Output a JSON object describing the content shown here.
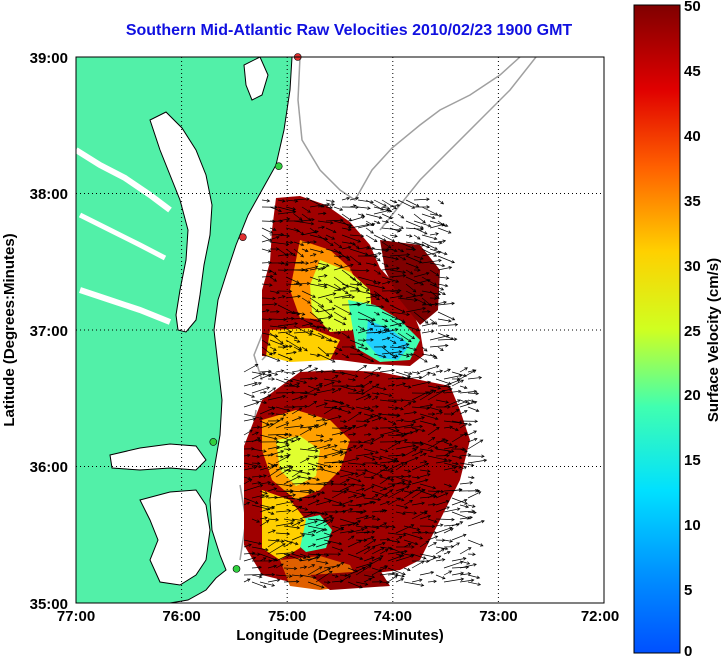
{
  "title": "Southern Mid-Atlantic Raw Velocities 2010/02/23 1900 GMT",
  "x_axis": {
    "label": "Longitude (Degrees:Minutes)",
    "ticks": [
      "77:00",
      "76:00",
      "75:00",
      "74:00",
      "73:00",
      "72:00"
    ],
    "range": [
      -77,
      -72
    ]
  },
  "y_axis": {
    "label": "Latitude (Degrees:Minutes)",
    "ticks": [
      "39:00",
      "38:00",
      "37:00",
      "36:00",
      "35:00"
    ],
    "range": [
      35,
      39
    ]
  },
  "colorbar": {
    "label": "Surface Velocity (cm/s)",
    "ticks": [
      "0",
      "5",
      "10",
      "15",
      "20",
      "25",
      "30",
      "35",
      "40",
      "45",
      "50"
    ],
    "range": [
      0,
      50
    ],
    "colormap": "jet"
  },
  "colors": {
    "land": "#52f0a8",
    "coast": "#000000",
    "bathymetry": "#a0a0a0",
    "grid": "#000000",
    "title": "#1010e0"
  },
  "stations": [
    {
      "lon": -74.9,
      "lat": 39.0,
      "color": "#e03030"
    },
    {
      "lon": -75.08,
      "lat": 38.2,
      "color": "#30d040"
    },
    {
      "lon": -75.42,
      "lat": 37.68,
      "color": "#e03030"
    },
    {
      "lon": -75.7,
      "lat": 36.18,
      "color": "#30d040"
    },
    {
      "lon": -75.48,
      "lat": 35.25,
      "color": "#30d040"
    }
  ]
}
